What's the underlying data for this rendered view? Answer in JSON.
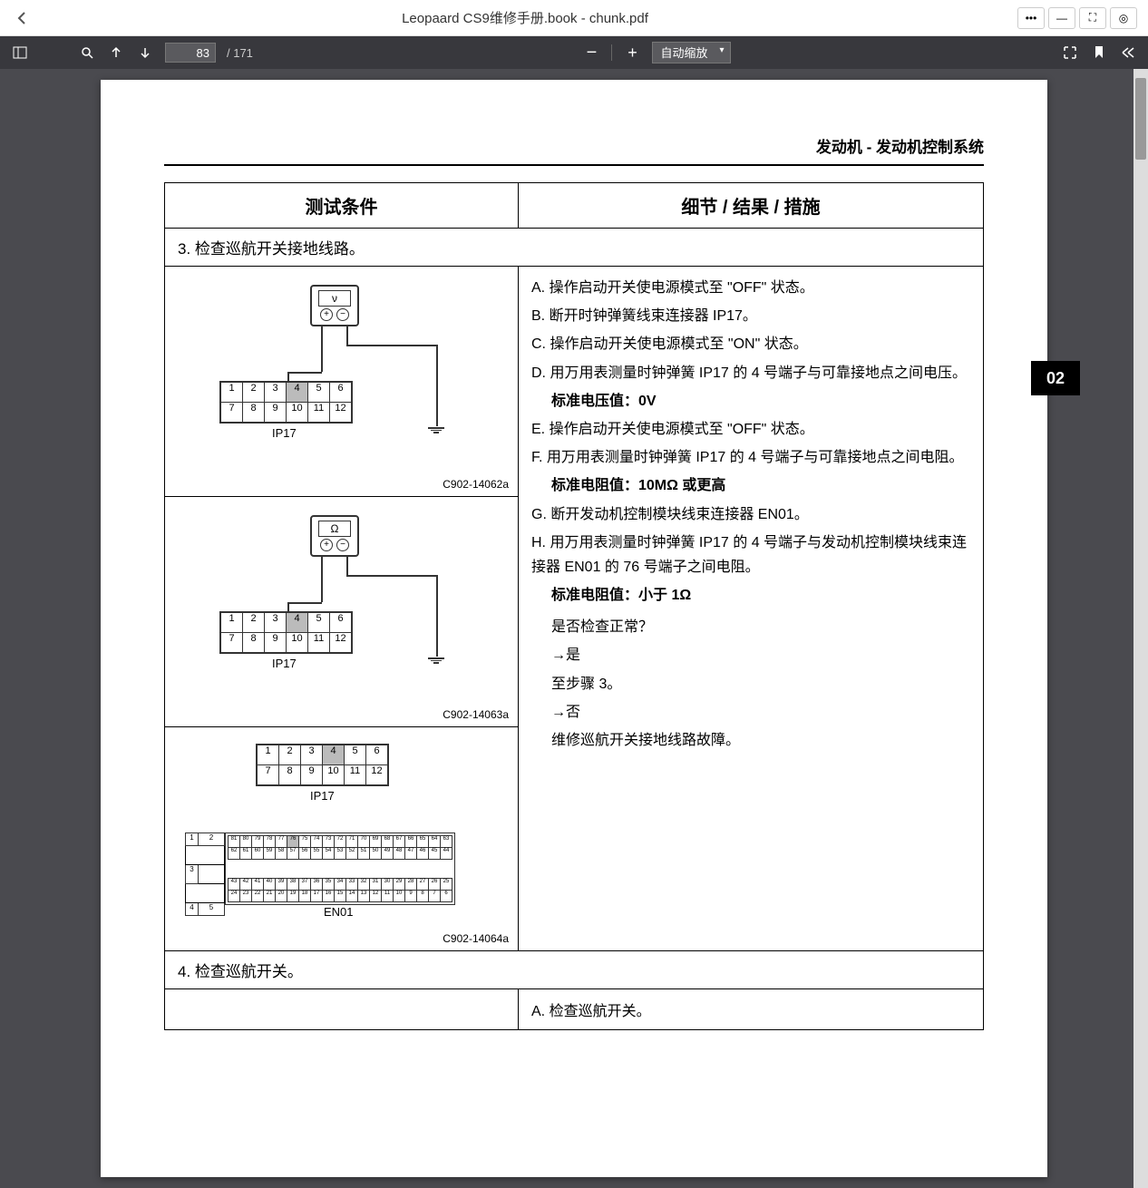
{
  "window": {
    "title": "Leopaard CS9维修手册.book - chunk.pdf",
    "back_icon": "‹"
  },
  "win_buttons": {
    "more": "•••",
    "minimize": "—",
    "maximize": "⛶",
    "target": "◎"
  },
  "toolbar": {
    "current_page": "83",
    "total_pages": "/ 171",
    "zoom_label": "自动缩放",
    "zoom_out": "−",
    "zoom_in": "+"
  },
  "page_header": "发动机 - 发动机控制系统",
  "side_tab": "02",
  "table_headers": {
    "left": "测试条件",
    "right": "细节 / 结果 / 措施"
  },
  "step3_title": "3. 检查巡航开关接地线路。",
  "step4_title": "4. 检查巡航开关。",
  "step4_detail_a": "A. 检查巡航开关。",
  "diagram1": {
    "meter_symbol": "ν",
    "connector_label": "IP17",
    "code": "C902-14062a",
    "pins_r1": [
      "1",
      "2",
      "3",
      "4",
      "5",
      "6"
    ],
    "pins_r2": [
      "7",
      "8",
      "9",
      "10",
      "11",
      "12"
    ],
    "highlight_pin": 4
  },
  "diagram2": {
    "meter_symbol": "Ω",
    "connector_label": "IP17",
    "code": "C902-14063a",
    "pins_r1": [
      "1",
      "2",
      "3",
      "4",
      "5",
      "6"
    ],
    "pins_r2": [
      "7",
      "8",
      "9",
      "10",
      "11",
      "12"
    ],
    "highlight_pin": 4
  },
  "diagram3": {
    "connector_label": "IP17",
    "en01_label": "EN01",
    "code": "C902-14064a",
    "pins_r1": [
      "1",
      "2",
      "3",
      "4",
      "5",
      "6"
    ],
    "pins_r2": [
      "7",
      "8",
      "9",
      "10",
      "11",
      "12"
    ],
    "highlight_pin": 4,
    "side_pins": [
      "1",
      "2",
      "3",
      "4",
      "5"
    ],
    "en01_rows": [
      [
        "81",
        "80",
        "79",
        "78",
        "77",
        "76",
        "75",
        "74",
        "73",
        "72",
        "71",
        "70",
        "69",
        "68",
        "67",
        "66",
        "65",
        "64",
        "63"
      ],
      [
        "62",
        "61",
        "60",
        "59",
        "58",
        "57",
        "56",
        "55",
        "54",
        "53",
        "52",
        "51",
        "50",
        "49",
        "48",
        "47",
        "46",
        "45",
        "44"
      ],
      [
        "43",
        "42",
        "41",
        "40",
        "39",
        "38",
        "37",
        "36",
        "35",
        "34",
        "33",
        "32",
        "31",
        "30",
        "29",
        "28",
        "27",
        "26",
        "25"
      ],
      [
        "24",
        "23",
        "22",
        "21",
        "20",
        "19",
        "18",
        "17",
        "16",
        "15",
        "14",
        "13",
        "12",
        "11",
        "10",
        "9",
        "8",
        "7",
        "6"
      ]
    ],
    "en01_highlight": "76"
  },
  "details": {
    "a": "A. 操作启动开关使电源模式至 \"OFF\" 状态。",
    "b": "B. 断开时钟弹簧线束连接器 IP17。",
    "c": "C. 操作启动开关使电源模式至 \"ON\" 状态。",
    "d": "D. 用万用表测量时钟弹簧 IP17 的 4 号端子与可靠接地点之间电压。",
    "d_std": "标准电压值：0V",
    "e": "E. 操作启动开关使电源模式至 \"OFF\" 状态。",
    "f": "F. 用万用表测量时钟弹簧 IP17 的 4 号端子与可靠接地点之间电阻。",
    "f_std": "标准电阻值：10MΩ 或更高",
    "g": "G. 断开发动机控制模块线束连接器 EN01。",
    "h": "H. 用万用表测量时钟弹簧 IP17 的 4 号端子与发动机控制模块线束连接器 EN01 的 76 号端子之间电阻。",
    "h_std": "标准电阻值：小于 1Ω",
    "q": "是否检查正常？",
    "yes": "→是",
    "yes_action": "至步骤 3。",
    "no": "→否",
    "no_action": "维修巡航开关接地线路故障。"
  },
  "colors": {
    "toolbar_bg": "#38383d",
    "viewer_bg": "#4a4a4f",
    "page_bg": "#ffffff",
    "border": "#000000",
    "highlight": "#bbbbbb"
  }
}
